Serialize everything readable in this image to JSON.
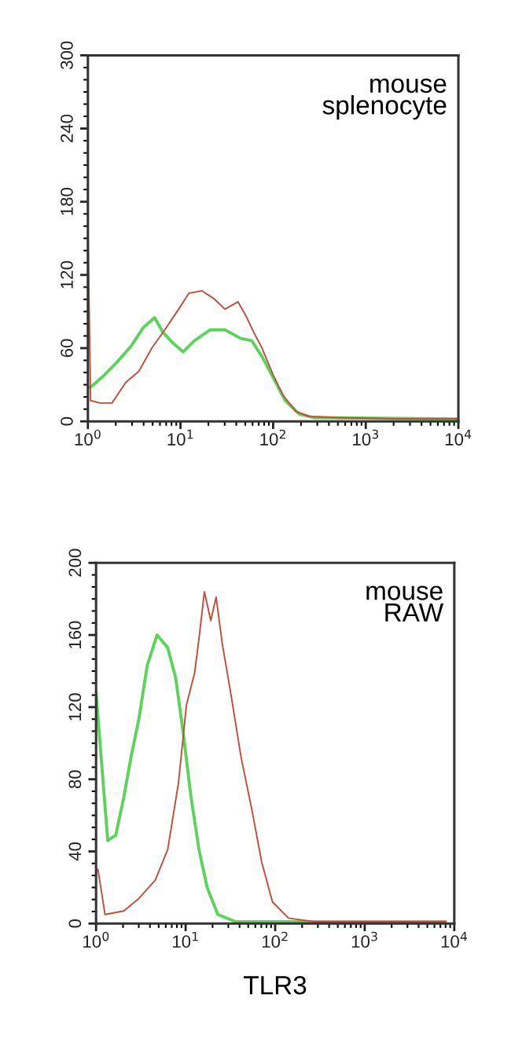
{
  "chart_data": [
    {
      "type": "line",
      "log": "x",
      "xlim": [
        1,
        10000
      ],
      "ylim": [
        0,
        300
      ],
      "xticks": [
        {
          "value": 1,
          "label": "10$^{0}$"
        },
        {
          "value": 10,
          "label": "10$^{1}$"
        },
        {
          "value": 100,
          "label": "10$^{2}$"
        },
        {
          "value": 1000,
          "label": "10$^{3}$"
        },
        {
          "value": 10000,
          "label": "10$^{4}$"
        }
      ],
      "yticks": [
        0,
        60,
        120,
        180,
        240,
        300
      ],
      "annotations": [
        "mouse\nsplenocyte"
      ],
      "series": [
        {
          "color": "#5ad45a",
          "x": [
            1,
            1.07,
            1.51,
            2.09,
            2.95,
            3.98,
            5.25,
            6.46,
            8.32,
            10.7,
            14.1,
            20.9,
            30.2,
            44.7,
            58.9,
            75.9,
            100,
            135,
            191,
            282,
            9550
          ],
          "values": [
            28,
            28,
            38,
            49,
            62,
            77,
            85,
            73,
            64,
            57,
            66,
            75,
            75,
            68,
            66,
            53,
            36,
            17,
            6,
            3,
            2
          ]
        },
        {
          "color": "#c0503c",
          "x": [
            1,
            1.07,
            1.35,
            1.82,
            2.57,
            3.55,
            4.9,
            6.76,
            9.55,
            12.3,
            17,
            23.4,
            30.2,
            41.7,
            51.3,
            61.7,
            75.9,
            100,
            129,
            178,
            245,
            537,
            1995,
            9550
          ],
          "values": [
            160,
            17,
            15,
            15,
            32,
            41,
            60,
            75,
            92,
            105,
            107,
            100,
            92,
            98,
            86,
            73,
            60,
            38,
            21,
            8,
            4,
            3,
            2,
            2
          ]
        }
      ]
    },
    {
      "type": "line",
      "log": "x",
      "xlim": [
        1,
        10000
      ],
      "ylim": [
        0,
        200
      ],
      "xlabel": "TLR3",
      "xticks": [
        {
          "value": 1,
          "label": "10$^{0}$"
        },
        {
          "value": 10,
          "label": "10$^{1}$"
        },
        {
          "value": 100,
          "label": "10$^{2}$"
        },
        {
          "value": 1000,
          "label": "10$^{3}$"
        },
        {
          "value": 10000,
          "label": "10$^{4}$"
        }
      ],
      "yticks": [
        0,
        40,
        80,
        120,
        160,
        200
      ],
      "annotations": [
        "mouse\nRAW"
      ],
      "series": [
        {
          "color": "#5ad45a",
          "x": [
            1,
            1.35,
            1.66,
            2.04,
            2.45,
            3.02,
            3.72,
            4.79,
            6.31,
            7.76,
            9.33,
            11.5,
            14.1,
            17.4,
            22.9,
            36.3,
            7943
          ],
          "values": [
            128,
            46,
            49,
            70,
            92,
            114,
            143,
            160,
            153,
            136,
            107,
            70,
            41,
            20,
            5,
            1,
            1
          ]
        },
        {
          "color": "#c0503c",
          "x": [
            1,
            1.05,
            1.26,
            2.04,
            3.02,
            4.57,
            6.31,
            8.32,
            10.2,
            12.6,
            14.1,
            16.2,
            19.1,
            21.9,
            25.7,
            31.6,
            41.7,
            55,
            70.8,
            93.3,
            141,
            275,
            7943
          ],
          "values": [
            30,
            30,
            5,
            7,
            14,
            24,
            41,
            78,
            121,
            139,
            158,
            184,
            168,
            181,
            155,
            129,
            92,
            63,
            34,
            12,
            3,
            1,
            1
          ]
        }
      ]
    }
  ]
}
